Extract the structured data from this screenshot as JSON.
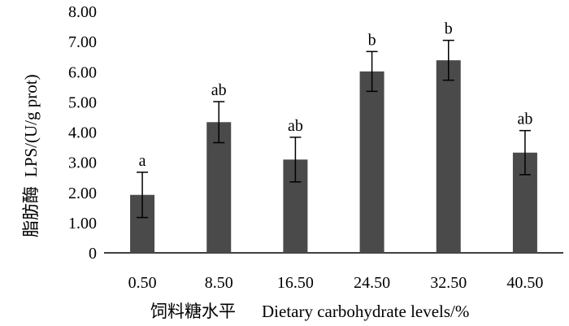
{
  "chart_data": {
    "type": "bar",
    "categories": [
      "0.50",
      "8.50",
      "16.50",
      "24.50",
      "32.50",
      "40.50"
    ],
    "series": [
      {
        "values": [
          1.92,
          4.33,
          3.09,
          6.01,
          6.38,
          3.32
        ],
        "error": [
          0.75,
          0.68,
          0.74,
          0.66,
          0.66,
          0.73
        ],
        "labels": [
          "a",
          "ab",
          "ab",
          "b",
          "b",
          "ab"
        ]
      }
    ],
    "ylim": [
      0,
      8
    ],
    "yticks": [
      "0",
      "1.00",
      "2.00",
      "3.00",
      "4.00",
      "5.00",
      "6.00",
      "7.00",
      "8.00"
    ],
    "ylabel_cn": "脂肪酶",
    "ylabel_en": "LPS/(U/g prot)",
    "xlabel_cn": "饲料糖水平",
    "xlabel_en": "Dietary carbohydrate levels/%",
    "bar_color": "#4a4a4a",
    "grid": false,
    "legend": "none"
  }
}
